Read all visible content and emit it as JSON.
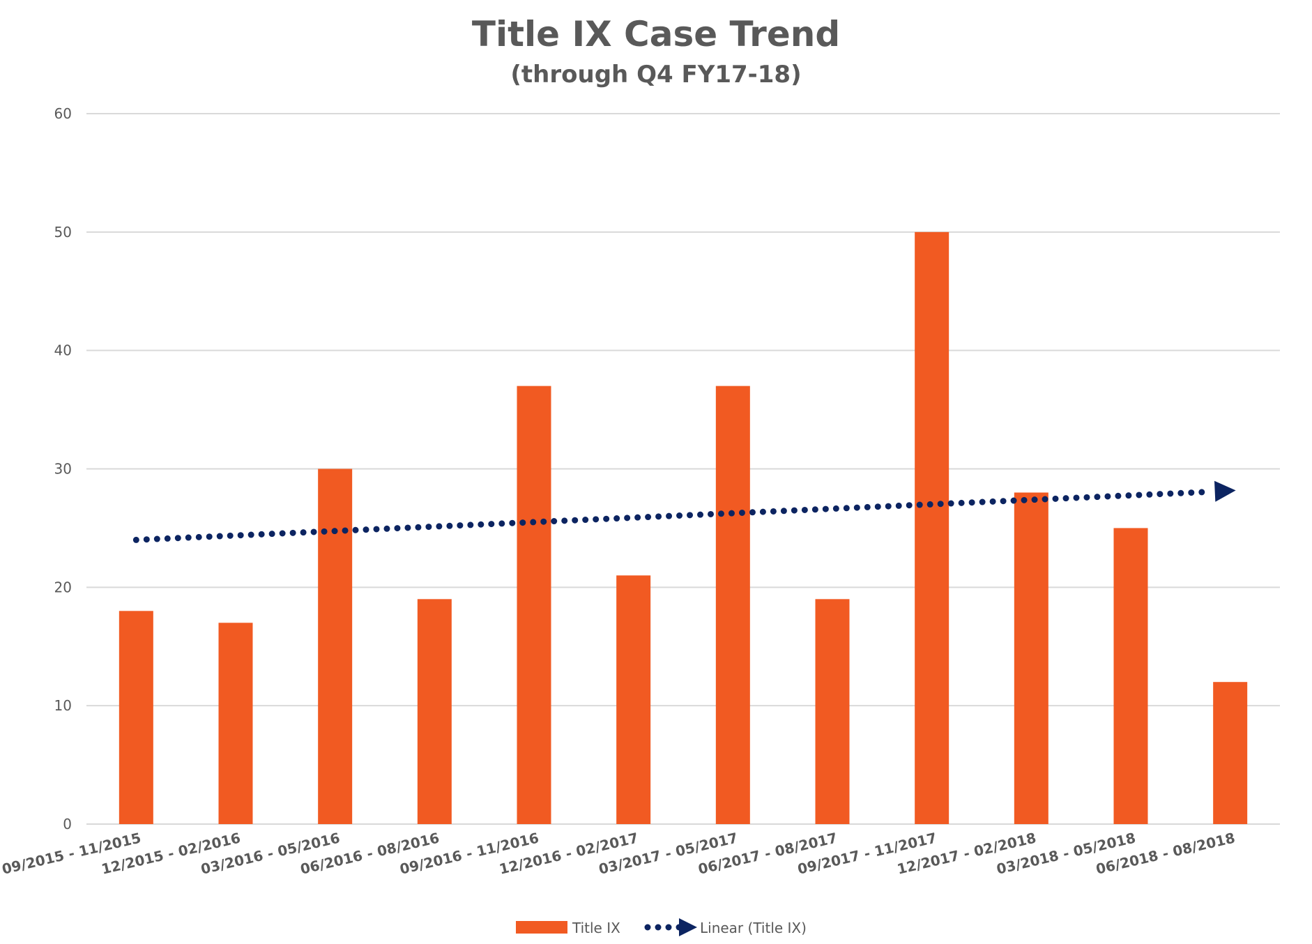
{
  "chart_data": {
    "type": "bar",
    "title": "Title IX Case Trend",
    "subtitle": "(through Q4 FY17-18)",
    "categories": [
      "09/2015 - 11/2015",
      "12/2015 - 02/2016",
      "03/2016 - 05/2016",
      "06/2016 - 08/2016",
      "09/2016 - 11/2016",
      "12/2016 - 02/2017",
      "03/2017 - 05/2017",
      "06/2017 - 08/2017",
      "09/2017 - 11/2017",
      "12/2017 - 02/2018",
      "03/2018 - 05/2018",
      "06/2018 - 08/2018"
    ],
    "series": [
      {
        "name": "Title IX",
        "values": [
          18,
          17,
          30,
          19,
          37,
          21,
          37,
          19,
          50,
          28,
          25,
          12
        ],
        "color": "#F15A22"
      }
    ],
    "trendline": {
      "name": "Linear (Title IX)",
      "type": "linear",
      "start": 24,
      "end": 28.1,
      "color": "#0C2461",
      "style": "dotted",
      "arrow": true
    },
    "ylim": [
      0,
      60
    ],
    "yticks": [
      0,
      10,
      20,
      30,
      40,
      50,
      60
    ],
    "xlabel": "",
    "ylabel": "",
    "grid": true,
    "legend_position": "bottom"
  }
}
